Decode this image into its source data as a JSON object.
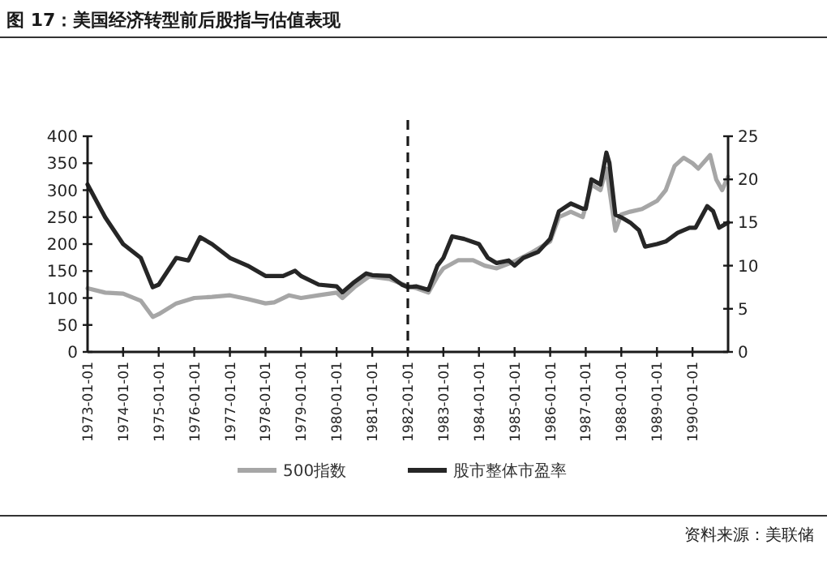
{
  "chart_data": {
    "type": "line",
    "title": "图 17：美国经济转型前后股指与估值表现",
    "annotations": [
      "资料来源：美联储"
    ],
    "xlim": [
      "1973-01-01",
      "1991-01-01"
    ],
    "xticks": [
      "1973-01-01",
      "1974-01-01",
      "1975-01-01",
      "1976-01-01",
      "1977-01-01",
      "1978-01-01",
      "1979-01-01",
      "1980-01-01",
      "1981-01-01",
      "1982-01-01",
      "1983-01-01",
      "1984-01-01",
      "1985-01-01",
      "1986-01-01",
      "1987-01-01",
      "1988-01-01",
      "1989-01-01",
      "1990-01-01"
    ],
    "ylim": [
      0,
      400
    ],
    "yticks": [
      0,
      50,
      100,
      150,
      200,
      250,
      300,
      350,
      400
    ],
    "y2lim": [
      0,
      25
    ],
    "y2ticks": [
      0,
      5,
      10,
      15,
      20,
      25
    ],
    "legend": "bottom",
    "grid": false,
    "marker": "none",
    "line_style": "solid",
    "ref_lines": [
      {
        "axis": "x",
        "value": "1982-01-01",
        "color": "#1a1a1a",
        "line_style": "dashed"
      }
    ],
    "series": [
      {
        "name": "500指数",
        "color": "#a6a6a6",
        "x": [
          "1973-01",
          "1973-07",
          "1974-01",
          "1974-07",
          "1974-11",
          "1975-01",
          "1975-07",
          "1976-01",
          "1976-07",
          "1977-01",
          "1977-07",
          "1978-01",
          "1978-04",
          "1978-09",
          "1979-01",
          "1979-07",
          "1980-01",
          "1980-03",
          "1980-07",
          "1980-12",
          "1981-07",
          "1982-01",
          "1982-04",
          "1982-08",
          "1982-11",
          "1983-01",
          "1983-06",
          "1983-11",
          "1984-03",
          "1984-07",
          "1985-01",
          "1985-07",
          "1986-01",
          "1986-04",
          "1986-08",
          "1986-12",
          "1987-03",
          "1987-06",
          "1987-08",
          "1987-11",
          "1988-01",
          "1988-04",
          "1988-08",
          "1989-01",
          "1989-04",
          "1989-07",
          "1989-10",
          "1990-01",
          "1990-03",
          "1990-07",
          "1990-09",
          "1990-11",
          "1991-01"
        ],
        "values": [
          118,
          110,
          108,
          95,
          65,
          70,
          90,
          100,
          102,
          105,
          98,
          90,
          92,
          105,
          100,
          105,
          110,
          100,
          120,
          140,
          135,
          122,
          118,
          110,
          140,
          155,
          170,
          170,
          160,
          155,
          168,
          185,
          205,
          250,
          260,
          250,
          310,
          300,
          340,
          225,
          255,
          260,
          265,
          280,
          300,
          345,
          360,
          350,
          340,
          365,
          320,
          300,
          325
        ]
      },
      {
        "name": "股市整体市盈率",
        "color": "#262626",
        "axis": "y2",
        "x": [
          "1973-01",
          "1973-07",
          "1974-01",
          "1974-07",
          "1974-11",
          "1975-01",
          "1975-07",
          "1975-11",
          "1976-03",
          "1976-07",
          "1977-01",
          "1977-07",
          "1978-01",
          "1978-07",
          "1978-11",
          "1979-01",
          "1979-07",
          "1980-01",
          "1980-03",
          "1980-07",
          "1980-11",
          "1981-01",
          "1981-07",
          "1981-11",
          "1982-01",
          "1982-04",
          "1982-08",
          "1982-11",
          "1983-01",
          "1983-04",
          "1983-08",
          "1984-01",
          "1984-04",
          "1984-07",
          "1984-11",
          "1985-01",
          "1985-04",
          "1985-09",
          "1986-01",
          "1986-04",
          "1986-08",
          "1986-12",
          "1987-01",
          "1987-03",
          "1987-06",
          "1987-08",
          "1987-09",
          "1987-11",
          "1988-01",
          "1988-04",
          "1988-07",
          "1988-09",
          "1989-01",
          "1989-04",
          "1989-08",
          "1989-12",
          "1990-02",
          "1990-06",
          "1990-08",
          "1990-10",
          "1991-01"
        ],
        "values": [
          19.4,
          15.6,
          12.5,
          10.9,
          7.5,
          7.8,
          10.9,
          10.6,
          13.3,
          12.5,
          10.9,
          10,
          8.8,
          8.8,
          9.4,
          8.8,
          7.8,
          7.6,
          6.9,
          8.1,
          9.1,
          8.9,
          8.8,
          7.8,
          7.5,
          7.6,
          7.2,
          10,
          10.9,
          13.4,
          13.1,
          12.5,
          10.9,
          10.3,
          10.6,
          10,
          10.9,
          11.6,
          13.1,
          16.3,
          17.2,
          16.6,
          16.6,
          20,
          19.4,
          23.1,
          21.9,
          15.9,
          15.6,
          15,
          14.1,
          12.2,
          12.5,
          12.8,
          13.8,
          14.4,
          14.4,
          16.9,
          16.3,
          14.4,
          15
        ]
      }
    ]
  }
}
